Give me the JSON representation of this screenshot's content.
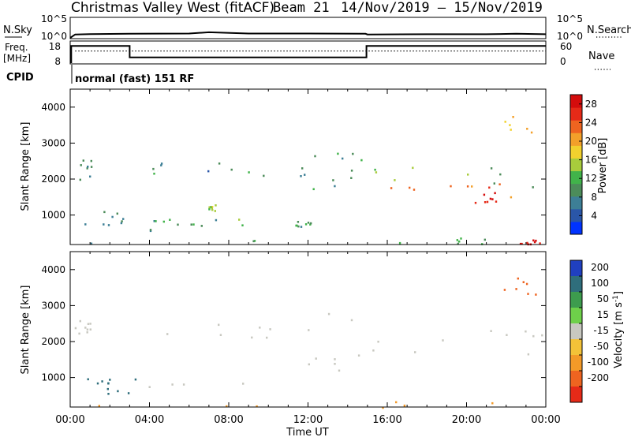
{
  "header": {
    "radar_title": "Christmas Valley West (fitACF)",
    "beam_label": "Beam 21",
    "date_range": "14/Nov/2019 – 15/Nov/2019"
  },
  "chart_data": [
    {
      "type": "line",
      "panel": "noise",
      "left_label": "N.Sky",
      "right_label": "N.Search",
      "left_ticks": [
        "10^5",
        "10^0"
      ],
      "right_ticks": [
        "10^5",
        "10^0"
      ],
      "y_scale": "log",
      "ylim": [
        1,
        100000
      ],
      "x": [
        0,
        0.25,
        1,
        3,
        6,
        7,
        9,
        12,
        14.9,
        15,
        18,
        21,
        22.5,
        24
      ],
      "values": [
        1,
        8,
        10,
        12,
        14,
        30,
        14,
        14,
        12,
        8,
        9,
        9,
        12,
        9
      ]
    },
    {
      "type": "line",
      "panel": "frequency",
      "left_label": "Freq. [MHz]",
      "right_label": "Nave",
      "left_ticks": [
        18,
        8
      ],
      "right_ticks": [
        60,
        0
      ],
      "ylim": [
        8,
        18
      ],
      "series": [
        {
          "x": [
            0,
            0.05,
            0.05,
            0.25,
            0.25,
            3.0,
            3.0,
            14.95,
            14.95,
            24
          ],
          "values": [
            8,
            8,
            16,
            16,
            16,
            16,
            10.4,
            10.4,
            16,
            16
          ]
        },
        {
          "x": [
            0.25,
            24
          ],
          "values": [
            13.5,
            13.5
          ]
        }
      ]
    },
    {
      "type": "table",
      "panel": "cpid",
      "label": "CPID",
      "value": "normal (fast) 151 RF"
    },
    {
      "type": "heatmap",
      "panel": "power",
      "xlabel": "",
      "ylabel": "Slant Range [km]",
      "xlim": [
        0,
        24
      ],
      "ylim": [
        180,
        4500
      ],
      "yticks": [
        1000,
        2000,
        3000,
        4000
      ],
      "colorbar": {
        "label": "Power [dB]",
        "ticks": [
          4,
          8,
          12,
          16,
          20,
          24,
          28
        ],
        "range": [
          0,
          30
        ],
        "colors": [
          "#0033ff",
          "#2a56a8",
          "#3d7f96",
          "#4c8c5a",
          "#41b34a",
          "#a8cc3c",
          "#f2d12e",
          "#f3a02a",
          "#ee6420",
          "#e62a18",
          "#d40c0c"
        ]
      },
      "regions": [
        {
          "t": [
            0.2,
            1.1
          ],
          "r": [
            1850,
            2600
          ],
          "v": 9
        },
        {
          "t": [
            0.5,
            4.5
          ],
          "r": [
            550,
            1150
          ],
          "v": 8
        },
        {
          "t": [
            3.5,
            8.0
          ],
          "r": [
            2150,
            2500
          ],
          "v": 8
        },
        {
          "t": [
            4.0,
            9.2
          ],
          "r": [
            720,
            900
          ],
          "v": 11
        },
        {
          "t": [
            6.9,
            7.3
          ],
          "r": [
            1100,
            1300
          ],
          "v": 15
        },
        {
          "t": [
            8.0,
            12.0
          ],
          "r": [
            2100,
            2350
          ],
          "v": 8
        },
        {
          "t": [
            11.3,
            12.3
          ],
          "r": [
            700,
            850
          ],
          "v": 10
        },
        {
          "t": [
            12.0,
            15.0
          ],
          "r": [
            1200,
            2800
          ],
          "v": 9
        },
        {
          "t": [
            15.2,
            24.0
          ],
          "r": [
            1800,
            2400
          ],
          "v": 13
        },
        {
          "t": [
            15.8,
            22.5
          ],
          "r": [
            1500,
            1900
          ],
          "v": 24
        },
        {
          "t": [
            20.0,
            21.8
          ],
          "r": [
            1350,
            1650
          ],
          "v": 28
        },
        {
          "t": [
            21.5,
            23.5
          ],
          "r": [
            3300,
            3800
          ],
          "v": 18
        },
        {
          "t": [
            0.0,
            24.0
          ],
          "r": [
            180,
            420
          ],
          "v": 10
        },
        {
          "t": [
            22.5,
            24.0
          ],
          "r": [
            200,
            330
          ],
          "v": 28
        }
      ]
    },
    {
      "type": "heatmap",
      "panel": "velocity",
      "xlabel": "Time UT",
      "ylabel": "Slant Range [km]",
      "xlim": [
        0,
        24
      ],
      "ylim": [
        180,
        4500
      ],
      "xticks": [
        "00:00",
        "04:00",
        "08:00",
        "12:00",
        "16:00",
        "20:00",
        "00:00"
      ],
      "yticks": [
        1000,
        2000,
        3000,
        4000
      ],
      "colorbar": {
        "label": "Velocity [m s^-1]",
        "ticks": [
          200,
          100,
          50,
          15,
          -15,
          -50,
          -100,
          -200
        ],
        "colors": [
          "#2040c0",
          "#2f6e7c",
          "#3d9c4e",
          "#6ed04a",
          "#c8c8c0",
          "#f3c238",
          "#f39a28",
          "#ee6420",
          "#e62a18"
        ]
      },
      "regions": [
        {
          "t": [
            0.2,
            1.1
          ],
          "r": [
            1850,
            2600
          ],
          "v": 0
        },
        {
          "t": [
            0.8,
            3.3
          ],
          "r": [
            550,
            1050
          ],
          "v": 80
        },
        {
          "t": [
            3.3,
            9.2
          ],
          "r": [
            720,
            900
          ],
          "v": 0
        },
        {
          "t": [
            3.5,
            12.0
          ],
          "r": [
            2100,
            2500
          ],
          "v": 0
        },
        {
          "t": [
            12.0,
            15.0
          ],
          "r": [
            1200,
            2800
          ],
          "v": 0
        },
        {
          "t": [
            15.2,
            24.0
          ],
          "r": [
            1500,
            2450
          ],
          "v": 0
        },
        {
          "t": [
            21.8,
            23.6
          ],
          "r": [
            3300,
            3900
          ],
          "v": -120
        },
        {
          "t": [
            0.0,
            24.0
          ],
          "r": [
            180,
            420
          ],
          "v": -40
        }
      ]
    }
  ]
}
